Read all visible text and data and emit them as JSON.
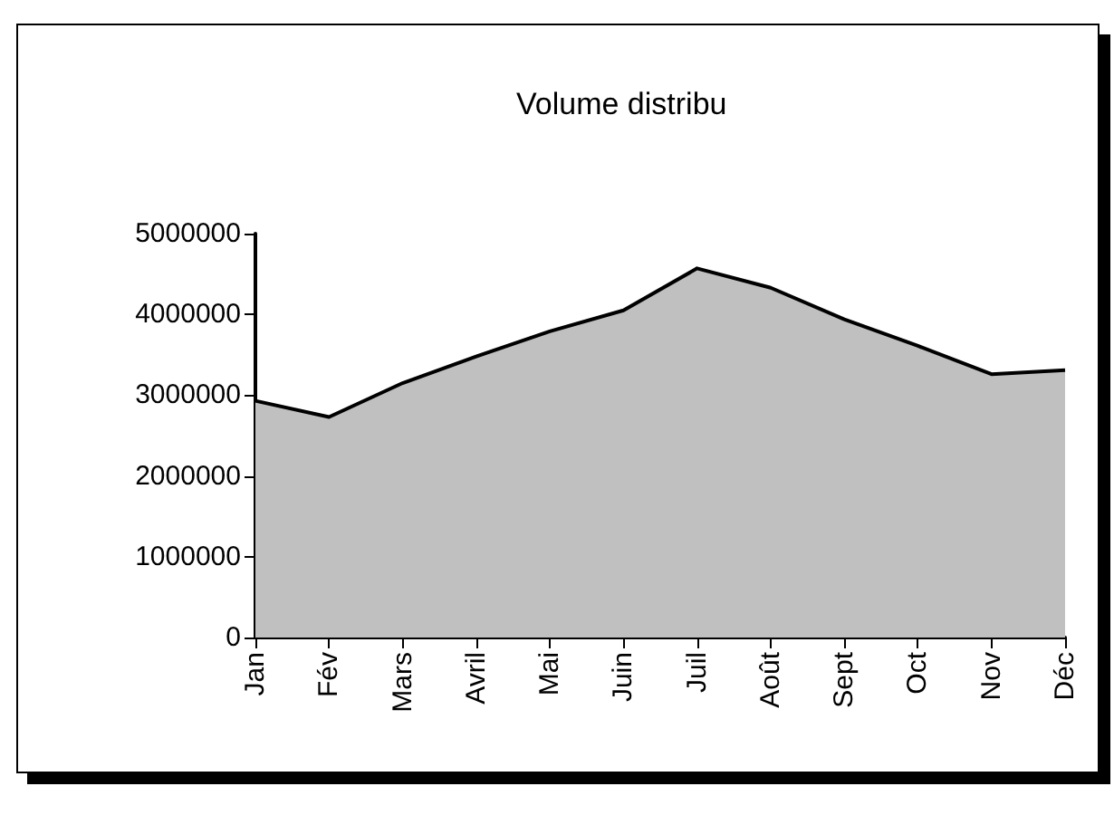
{
  "chart_data": {
    "type": "area",
    "title": "Volume distribu",
    "categories": [
      "Jan",
      "Fév",
      "Mars",
      "Avril",
      "Mai",
      "Juin",
      "Juil",
      "Août",
      "Sept",
      "Oct",
      "Nov",
      "Déc"
    ],
    "series": [
      {
        "color": "#c0c0c0",
        "values": [
          2930000,
          2730000,
          3150000,
          3480000,
          3790000,
          4050000,
          4570000,
          4330000,
          3940000,
          3610000,
          3260000,
          3310000
        ]
      }
    ],
    "ylim": [
      0,
      5000000
    ],
    "yticks": [
      0,
      1000000,
      2000000,
      3000000,
      4000000,
      5000000
    ],
    "grid": false
  }
}
